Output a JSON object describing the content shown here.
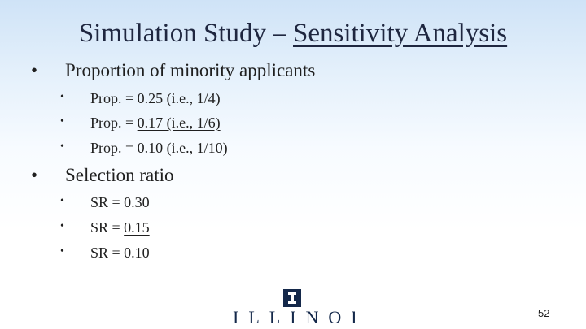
{
  "slide": {
    "title_prefix": "Simulation Study – ",
    "title_underlined": "Sensitivity Analysis",
    "bullet_glyph": "•",
    "sections": [
      {
        "label": "Proportion of minority applicants",
        "items": [
          {
            "pre": "Prop. = ",
            "underlined": "",
            "text": "0.25 (i.e., 1/4)"
          },
          {
            "pre": "Prop. = ",
            "underlined": "0.17 (i.e., 1/6)",
            "text": ""
          },
          {
            "pre": "Prop. = ",
            "underlined": "",
            "text": "0.10 (i.e., 1/10)"
          }
        ]
      },
      {
        "label": "Selection ratio",
        "items": [
          {
            "pre": "SR = ",
            "underlined": "",
            "text": "0.30"
          },
          {
            "pre": "SR = ",
            "underlined": "0.15",
            "text": ""
          },
          {
            "pre": "SR = ",
            "underlined": "",
            "text": "0.10"
          }
        ]
      }
    ],
    "logo_text": "ILLINOIS",
    "logo_icon": "illinois-block-i-icon",
    "page_number": "52",
    "colors": {
      "title": "#1f2740",
      "brand_navy": "#14284a",
      "background_top": "#cfe3f7"
    }
  }
}
